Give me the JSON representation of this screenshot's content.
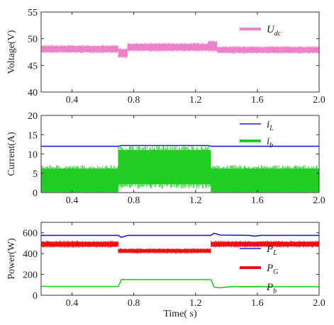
{
  "chart_data": [
    {
      "type": "line",
      "ylabel": "Voltage(V)",
      "xlim": [
        0.2,
        2.0
      ],
      "ylim": [
        40,
        55
      ],
      "xticks": [
        0.4,
        0.8,
        1.2,
        1.6,
        2.0
      ],
      "xtick_labels": [
        "0.4",
        "0.8",
        "1.2",
        "1.6",
        "2.0"
      ],
      "yticks": [
        40,
        45,
        50,
        55
      ],
      "ytick_labels": [
        "40",
        "45",
        "50",
        "55"
      ],
      "grid": false,
      "legend_position": "top-right",
      "series": [
        {
          "name": "U",
          "sub": "dc",
          "color": "#ee82c8",
          "band": true,
          "segments": [
            {
              "x0": 0.2,
              "x1": 0.7,
              "low": 47.5,
              "high": 48.6
            },
            {
              "x0": 0.7,
              "x1": 0.76,
              "low": 46.6,
              "high": 48.0
            },
            {
              "x0": 0.76,
              "x1": 1.28,
              "low": 47.8,
              "high": 49.0
            },
            {
              "x0": 1.28,
              "x1": 1.34,
              "low": 47.8,
              "high": 49.4
            },
            {
              "x0": 1.34,
              "x1": 2.0,
              "low": 47.4,
              "high": 48.4
            }
          ]
        }
      ]
    },
    {
      "type": "line",
      "ylabel": "Current(A)",
      "xlim": [
        0.2,
        2.0
      ],
      "ylim": [
        0,
        20
      ],
      "xticks": [
        0.4,
        0.8,
        1.2,
        1.6,
        2.0
      ],
      "xtick_labels": [
        "0.4",
        "0.8",
        "1.2",
        "1.6",
        "2.0"
      ],
      "yticks": [
        0,
        5,
        10,
        15,
        20
      ],
      "ytick_labels": [
        "0",
        "5",
        "10",
        "15",
        "20"
      ],
      "grid": false,
      "legend_position": "top-right",
      "series": [
        {
          "name": "i",
          "sub": "L",
          "color": "#1a1adf",
          "band": false,
          "points": [
            [
              0.2,
              12.0
            ],
            [
              0.7,
              12.0
            ],
            [
              0.72,
              12.2
            ],
            [
              1.28,
              12.2
            ],
            [
              1.3,
              12.0
            ],
            [
              2.0,
              12.0
            ]
          ]
        },
        {
          "name": "i",
          "sub": "b",
          "color": "#22cc22",
          "band": true,
          "segments": [
            {
              "x0": 0.2,
              "x1": 0.7,
              "low": 0.2,
              "high": 6.2
            },
            {
              "x0": 0.7,
              "x1": 1.3,
              "low": 2.2,
              "high": 11.0
            },
            {
              "x0": 1.3,
              "x1": 2.0,
              "low": 0.2,
              "high": 6.2
            }
          ]
        }
      ]
    },
    {
      "type": "line",
      "ylabel": "Power(W)",
      "xlabel": "Time( s)",
      "xlim": [
        0.2,
        2.0
      ],
      "ylim": [
        0,
        700
      ],
      "xticks": [
        0.4,
        0.8,
        1.2,
        1.6,
        2.0
      ],
      "xtick_labels": [
        "0.4",
        "0.8",
        "1.2",
        "1.6",
        "2.0"
      ],
      "yticks": [
        0,
        200,
        400,
        600
      ],
      "ytick_labels": [
        "0",
        "200",
        "400",
        "600"
      ],
      "grid": false,
      "legend_position": "right",
      "series": [
        {
          "name": "P",
          "sub": "L",
          "color": "#1a1adf",
          "band": false,
          "points": [
            [
              0.2,
              575
            ],
            [
              0.7,
              575
            ],
            [
              0.72,
              555
            ],
            [
              0.76,
              575
            ],
            [
              1.3,
              575
            ],
            [
              1.32,
              595
            ],
            [
              1.36,
              578
            ],
            [
              1.55,
              575
            ],
            [
              1.58,
              568
            ],
            [
              1.62,
              575
            ],
            [
              2.0,
              575
            ]
          ]
        },
        {
          "name": "P",
          "sub": "G",
          "color": "#ee1111",
          "band": true,
          "segments": [
            {
              "x0": 0.2,
              "x1": 0.7,
              "low": 468,
              "high": 512
            },
            {
              "x0": 0.7,
              "x1": 1.3,
              "low": 410,
              "high": 442
            },
            {
              "x0": 1.3,
              "x1": 2.0,
              "low": 470,
              "high": 512
            }
          ]
        },
        {
          "name": "P",
          "sub": "b",
          "color": "#22cc22",
          "band": false,
          "points": [
            [
              0.2,
              85
            ],
            [
              0.7,
              85
            ],
            [
              0.72,
              150
            ],
            [
              1.3,
              150
            ],
            [
              1.32,
              78
            ],
            [
              1.36,
              72
            ],
            [
              1.42,
              82
            ],
            [
              2.0,
              82
            ]
          ]
        }
      ]
    }
  ]
}
